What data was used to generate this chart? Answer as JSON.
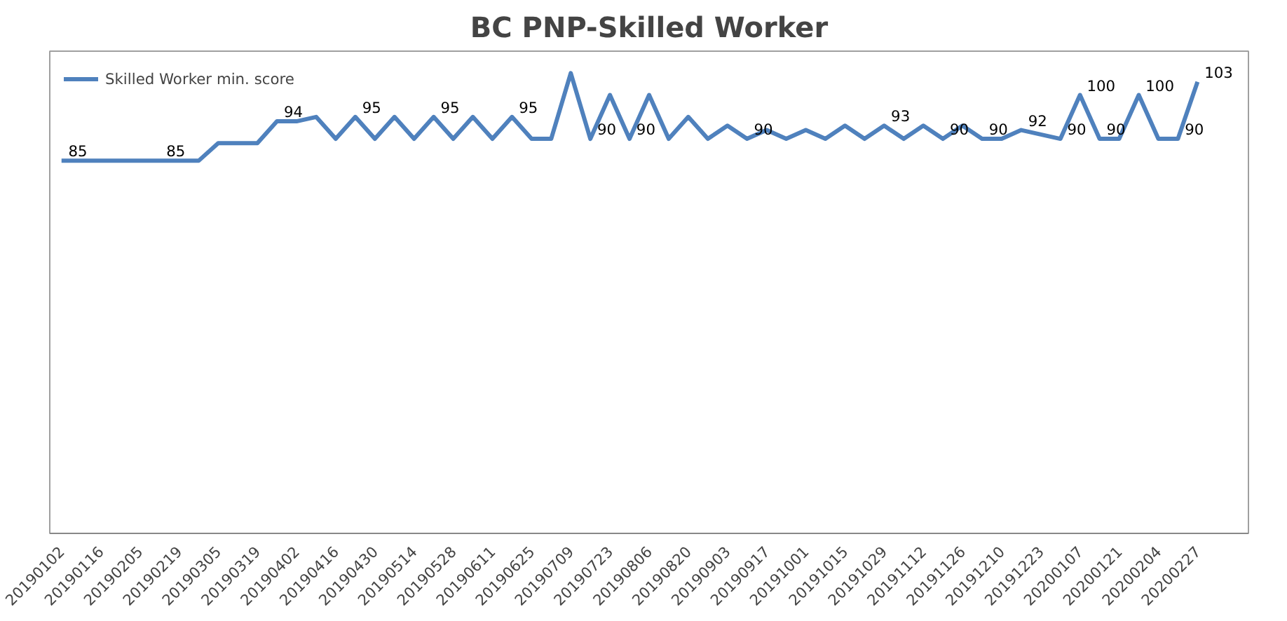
{
  "chart_data": {
    "type": "line",
    "title": "BC PNP-Skilled Worker",
    "categories": [
      "20190102",
      null,
      "20190116",
      null,
      "20190205",
      null,
      "20190219",
      null,
      "20190305",
      null,
      "20190319",
      null,
      "20190402",
      null,
      "20190416",
      null,
      "20190430",
      null,
      "20190514",
      null,
      "20190528",
      null,
      "20190611",
      null,
      "20190625",
      null,
      "20190709",
      null,
      "20190723",
      null,
      "20190806",
      null,
      "20190820",
      null,
      "20190903",
      null,
      "20190917",
      null,
      "20191001",
      null,
      "20191015",
      null,
      "20191029",
      null,
      "20191112",
      null,
      "20191126",
      null,
      "20191210",
      null,
      "20191223",
      null,
      "20200107",
      null,
      "20200121",
      null,
      "20200204",
      null,
      "20200227"
    ],
    "series": [
      {
        "name": "Skilled Worker min. score",
        "color": "#4f81bd",
        "values": [
          85,
          85,
          85,
          85,
          85,
          85,
          85,
          85,
          89,
          89,
          89,
          94,
          94,
          95,
          90,
          95,
          90,
          95,
          90,
          95,
          90,
          95,
          90,
          95,
          90,
          90,
          105,
          90,
          100,
          90,
          100,
          90,
          95,
          90,
          93,
          90,
          92,
          90,
          92,
          90,
          93,
          90,
          93,
          90,
          93,
          90,
          93,
          90,
          90,
          92,
          91,
          90,
          100,
          90,
          90,
          100,
          90,
          90,
          103
        ],
        "value_labels": [
          "85",
          null,
          null,
          null,
          null,
          "85",
          null,
          null,
          null,
          null,
          null,
          "94",
          null,
          null,
          null,
          "95",
          null,
          null,
          null,
          "95",
          null,
          null,
          null,
          "95",
          null,
          null,
          null,
          "90",
          null,
          "90",
          null,
          null,
          null,
          null,
          null,
          "90",
          null,
          null,
          null,
          null,
          null,
          null,
          "93",
          null,
          null,
          "90",
          null,
          "90",
          null,
          "92",
          null,
          "90",
          "100",
          "90",
          null,
          "100",
          null,
          "90",
          "103"
        ]
      }
    ],
    "ylim": [
      0,
      110
    ],
    "tick_labels": "x",
    "grid": false,
    "legend": "top left",
    "marker": "none",
    "line_style": "solid"
  }
}
